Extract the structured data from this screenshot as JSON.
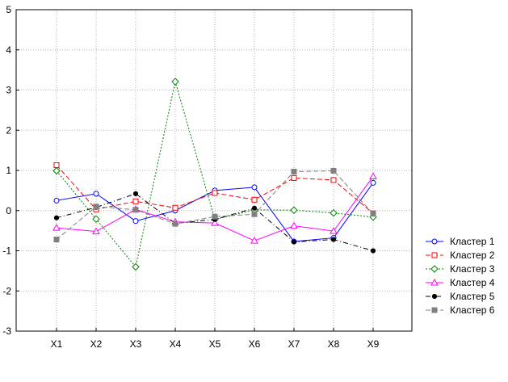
{
  "chart_data": {
    "type": "line",
    "title": "",
    "xlabel": "",
    "ylabel": "",
    "categories": [
      "X1",
      "X2",
      "X3",
      "X4",
      "X5",
      "X6",
      "X7",
      "X8",
      "X9"
    ],
    "ylim": [
      -3,
      5
    ],
    "yticks": [
      "-3",
      "-2",
      "-1",
      "0",
      "1",
      "2",
      "3",
      "4",
      "5"
    ],
    "grid": true,
    "legend_position": "right",
    "series": [
      {
        "name": "Кластер  1",
        "color": "#0000ff",
        "dash": "solid",
        "marker": "circle-open",
        "values": [
          0.25,
          0.42,
          -0.26,
          0.0,
          0.5,
          0.58,
          -0.77,
          -0.68,
          0.69
        ]
      },
      {
        "name": "Кластер  2",
        "color": "#ff0000",
        "dash": "dashed",
        "marker": "square-open",
        "values": [
          1.13,
          0.03,
          0.23,
          0.07,
          0.44,
          0.27,
          0.81,
          0.76,
          -0.07
        ]
      },
      {
        "name": "Кластер  3",
        "color": "#008000",
        "dash": "dotted",
        "marker": "diamond-open",
        "values": [
          0.99,
          -0.21,
          -1.4,
          3.21,
          -0.22,
          0.02,
          0.01,
          -0.06,
          -0.16
        ]
      },
      {
        "name": "Кластер  4",
        "color": "#ff00ff",
        "dash": "solid",
        "marker": "triangle-open",
        "values": [
          -0.43,
          -0.52,
          0.03,
          -0.28,
          -0.31,
          -0.75,
          -0.38,
          -0.51,
          0.85
        ]
      },
      {
        "name": "Кластер  5",
        "color": "#000000",
        "dash": "dashdot",
        "marker": "circle-filled",
        "values": [
          -0.18,
          0.08,
          0.42,
          -0.32,
          -0.22,
          0.06,
          -0.78,
          -0.72,
          -1.0
        ]
      },
      {
        "name": "Кластер  6",
        "color": "#808080",
        "dash": "dashed",
        "marker": "square-filled",
        "values": [
          -0.72,
          0.1,
          0.02,
          -0.33,
          -0.15,
          -0.09,
          0.97,
          0.99,
          -0.08
        ]
      }
    ]
  }
}
